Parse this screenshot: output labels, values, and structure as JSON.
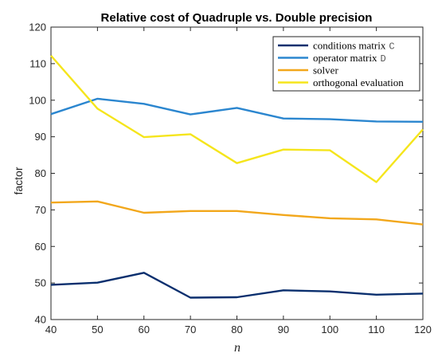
{
  "chart_data": {
    "type": "line",
    "title": "Relative cost of Quadruple vs. Double precision",
    "xlabel": "n",
    "ylabel": "factor",
    "x": [
      40,
      50,
      60,
      70,
      80,
      90,
      100,
      110,
      120
    ],
    "xlim": [
      40,
      120
    ],
    "ylim": [
      40,
      120
    ],
    "xticks": [
      "40",
      "50",
      "60",
      "70",
      "80",
      "90",
      "100",
      "110",
      "120"
    ],
    "yticks": [
      "40",
      "50",
      "60",
      "70",
      "80",
      "90",
      "100",
      "110",
      "120"
    ],
    "grid": false,
    "legend_position": "top-right",
    "series": [
      {
        "name": "conditions matrix",
        "code": "C",
        "color": "#0a2f6e",
        "values": [
          49.5,
          50.1,
          52.8,
          46.0,
          46.1,
          48.0,
          47.7,
          46.8,
          47.1
        ]
      },
      {
        "name": "operator matrix",
        "code": "D",
        "color": "#2b86cf",
        "values": [
          96.2,
          100.4,
          99.0,
          96.1,
          97.9,
          95.0,
          94.8,
          94.2,
          94.1
        ]
      },
      {
        "name": "solver",
        "code": "",
        "color": "#f2a71b",
        "values": [
          72.0,
          72.3,
          69.2,
          69.7,
          69.7,
          68.6,
          67.7,
          67.4,
          66.0
        ]
      },
      {
        "name": "orthogonal evaluation",
        "code": "",
        "color": "#f5e51c",
        "values": [
          112.2,
          97.7,
          89.9,
          90.7,
          82.8,
          86.5,
          86.3,
          77.6,
          92.0
        ]
      }
    ]
  }
}
